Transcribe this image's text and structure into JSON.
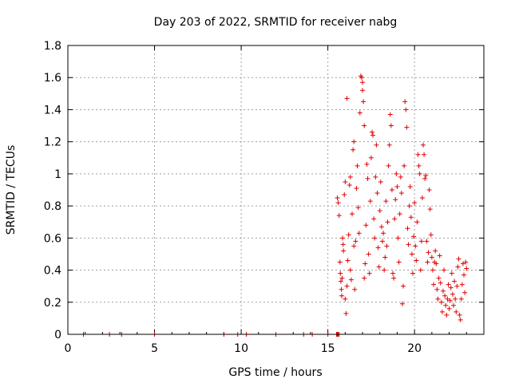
{
  "chart_data": {
    "type": "scatter",
    "title": "Day 203 of 2022, SRMTID for receiver nabg",
    "xlabel": "GPS time / hours",
    "ylabel": "SRMTID / TECUs",
    "xlim": [
      0,
      24
    ],
    "ylim": [
      0,
      1.8
    ],
    "x_ticks": [
      0,
      5,
      10,
      15,
      20
    ],
    "x_tick_labels": [
      "0",
      "5",
      "10",
      "15",
      "20"
    ],
    "y_ticks": [
      0,
      0.2,
      0.4,
      0.6,
      0.8,
      1.0,
      1.2,
      1.4,
      1.6,
      1.8
    ],
    "y_tick_labels": [
      "0",
      "0.2",
      "0.4",
      "0.6",
      "0.8",
      "1",
      "1.2",
      "1.4",
      "1.6",
      "1.8"
    ],
    "grid": true,
    "marker": "+",
    "series": [
      {
        "name": "SRMTID",
        "color": "#e00000",
        "points": [
          [
            0.9,
            0
          ],
          [
            2.4,
            0
          ],
          [
            3.1,
            0
          ],
          [
            5.0,
            0
          ],
          [
            9.0,
            0
          ],
          [
            9.8,
            0
          ],
          [
            10.3,
            0
          ],
          [
            12.0,
            0
          ],
          [
            13.6,
            0
          ],
          [
            14.1,
            0
          ],
          [
            15.0,
            0
          ],
          [
            15.5,
            0
          ],
          [
            15.55,
            0
          ],
          [
            15.6,
            0
          ],
          [
            15.65,
            0
          ],
          [
            15.55,
            0.85
          ],
          [
            15.6,
            0.82
          ],
          [
            15.65,
            0.74
          ],
          [
            15.7,
            0.45
          ],
          [
            15.72,
            0.38
          ],
          [
            15.75,
            0.33
          ],
          [
            15.78,
            0.28
          ],
          [
            15.8,
            0.24
          ],
          [
            15.82,
            0.35
          ],
          [
            15.85,
            0.6
          ],
          [
            15.88,
            0.56
          ],
          [
            15.9,
            0.52
          ],
          [
            15.95,
            0.87
          ],
          [
            16.0,
            0.95
          ],
          [
            16.0,
            0.22
          ],
          [
            16.05,
            0.13
          ],
          [
            16.1,
            0.3
          ],
          [
            16.1,
            1.47
          ],
          [
            16.15,
            0.46
          ],
          [
            16.2,
            0.62
          ],
          [
            16.25,
            0.93
          ],
          [
            16.3,
            0.98
          ],
          [
            16.3,
            0.4
          ],
          [
            16.35,
            0.34
          ],
          [
            16.4,
            0.75
          ],
          [
            16.45,
            1.15
          ],
          [
            16.5,
            1.2
          ],
          [
            16.5,
            0.55
          ],
          [
            16.55,
            0.28
          ],
          [
            16.6,
            0.58
          ],
          [
            16.65,
            0.91
          ],
          [
            16.7,
            1.05
          ],
          [
            16.75,
            0.79
          ],
          [
            16.8,
            0.63
          ],
          [
            16.85,
            1.38
          ],
          [
            16.9,
            1.61
          ],
          [
            16.95,
            1.6
          ],
          [
            17.0,
            1.57
          ],
          [
            17.0,
            1.52
          ],
          [
            17.05,
            1.45
          ],
          [
            17.1,
            1.3
          ],
          [
            17.1,
            0.35
          ],
          [
            17.15,
            0.44
          ],
          [
            17.2,
            0.68
          ],
          [
            17.25,
            1.06
          ],
          [
            17.3,
            0.97
          ],
          [
            17.35,
            0.5
          ],
          [
            17.4,
            0.38
          ],
          [
            17.45,
            0.83
          ],
          [
            17.5,
            1.1
          ],
          [
            17.55,
            1.26
          ],
          [
            17.6,
            1.24
          ],
          [
            17.65,
            0.72
          ],
          [
            17.7,
            0.6
          ],
          [
            17.75,
            0.98
          ],
          [
            17.8,
            1.18
          ],
          [
            17.85,
            0.88
          ],
          [
            17.9,
            0.54
          ],
          [
            17.95,
            0.42
          ],
          [
            18.0,
            0.77
          ],
          [
            18.05,
            0.95
          ],
          [
            18.1,
            0.67
          ],
          [
            18.15,
            0.58
          ],
          [
            18.2,
            0.63
          ],
          [
            18.25,
            0.4
          ],
          [
            18.3,
            0.48
          ],
          [
            18.35,
            0.83
          ],
          [
            18.4,
            0.55
          ],
          [
            18.45,
            0.7
          ],
          [
            18.5,
            1.05
          ],
          [
            18.55,
            1.18
          ],
          [
            18.6,
            1.37
          ],
          [
            18.65,
            1.3
          ],
          [
            18.7,
            0.9
          ],
          [
            18.75,
            0.38
          ],
          [
            18.8,
            0.35
          ],
          [
            18.85,
            0.72
          ],
          [
            18.9,
            0.84
          ],
          [
            18.95,
            1.0
          ],
          [
            19.0,
            0.92
          ],
          [
            19.05,
            0.6
          ],
          [
            19.1,
            0.45
          ],
          [
            19.15,
            0.75
          ],
          [
            19.2,
            0.98
          ],
          [
            19.25,
            0.88
          ],
          [
            19.3,
            0.19
          ],
          [
            19.35,
            0.3
          ],
          [
            19.4,
            1.05
          ],
          [
            19.45,
            1.45
          ],
          [
            19.5,
            1.4
          ],
          [
            19.55,
            1.29
          ],
          [
            19.6,
            0.66
          ],
          [
            19.65,
            0.56
          ],
          [
            19.7,
            0.8
          ],
          [
            19.75,
            0.92
          ],
          [
            19.8,
            0.73
          ],
          [
            19.85,
            0.5
          ],
          [
            19.9,
            0.38
          ],
          [
            19.95,
            0.61
          ],
          [
            20.0,
            0.82
          ],
          [
            20.05,
            0.55
          ],
          [
            20.1,
            0.46
          ],
          [
            20.15,
            0.7
          ],
          [
            20.2,
            1.12
          ],
          [
            20.25,
            1.05
          ],
          [
            20.3,
            1.0
          ],
          [
            20.35,
            0.4
          ],
          [
            20.4,
            0.58
          ],
          [
            20.45,
            0.85
          ],
          [
            20.5,
            1.18
          ],
          [
            20.55,
            1.12
          ],
          [
            20.6,
            0.97
          ],
          [
            20.65,
            0.99
          ],
          [
            20.7,
            0.58
          ],
          [
            20.75,
            0.45
          ],
          [
            20.8,
            0.51
          ],
          [
            20.85,
            0.9
          ],
          [
            20.9,
            0.78
          ],
          [
            20.95,
            0.62
          ],
          [
            21.0,
            0.48
          ],
          [
            21.05,
            0.4
          ],
          [
            21.1,
            0.31
          ],
          [
            21.15,
            0.45
          ],
          [
            21.2,
            0.52
          ],
          [
            21.25,
            0.44
          ],
          [
            21.3,
            0.28
          ],
          [
            21.35,
            0.22
          ],
          [
            21.4,
            0.35
          ],
          [
            21.45,
            0.49
          ],
          [
            21.5,
            0.32
          ],
          [
            21.55,
            0.2
          ],
          [
            21.6,
            0.14
          ],
          [
            21.65,
            0.27
          ],
          [
            21.7,
            0.4
          ],
          [
            21.75,
            0.24
          ],
          [
            21.8,
            0.18
          ],
          [
            21.85,
            0.12
          ],
          [
            21.9,
            0.22
          ],
          [
            21.95,
            0.31
          ],
          [
            22.0,
            0.16
          ],
          [
            22.05,
            0.21
          ],
          [
            22.1,
            0.29
          ],
          [
            22.15,
            0.38
          ],
          [
            22.2,
            0.25
          ],
          [
            22.25,
            0.18
          ],
          [
            22.3,
            0.33
          ],
          [
            22.35,
            0.22
          ],
          [
            22.4,
            0.14
          ],
          [
            22.45,
            0.3
          ],
          [
            22.5,
            0.42
          ],
          [
            22.55,
            0.47
          ],
          [
            22.6,
            0.12
          ],
          [
            22.65,
            0.09
          ],
          [
            22.7,
            0.22
          ],
          [
            22.75,
            0.31
          ],
          [
            22.8,
            0.44
          ],
          [
            22.85,
            0.37
          ],
          [
            22.9,
            0.26
          ],
          [
            22.95,
            0.45
          ],
          [
            23.0,
            0.41
          ]
        ]
      }
    ]
  }
}
